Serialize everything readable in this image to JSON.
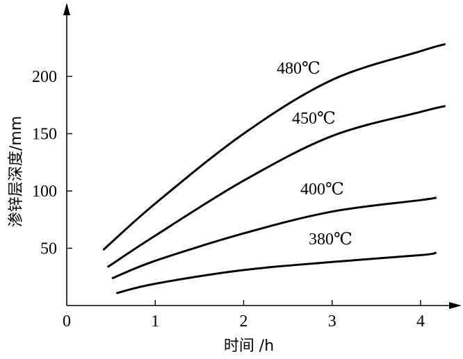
{
  "chart_data": {
    "type": "line",
    "xlabel": "时间 /h",
    "ylabel": "渗锌层深度/mm",
    "xlim": [
      0,
      4.5
    ],
    "ylim": [
      0,
      250
    ],
    "x_ticks": [
      "0",
      "1",
      "2",
      "3",
      "4"
    ],
    "y_ticks": [
      "50",
      "100",
      "150",
      "200"
    ],
    "grid": false,
    "series": [
      {
        "name": "480℃",
        "x": [
          0.42,
          1.0,
          2.0,
          3.0,
          4.0,
          4.27
        ],
        "y": [
          49,
          89,
          150,
          197,
          222,
          228
        ]
      },
      {
        "name": "450℃",
        "x": [
          0.47,
          1.0,
          2.0,
          3.0,
          4.0,
          4.27
        ],
        "y": [
          34,
          61,
          109,
          148,
          169,
          174
        ]
      },
      {
        "name": "400℃",
        "x": [
          0.52,
          1.0,
          2.0,
          3.0,
          4.0,
          4.17
        ],
        "y": [
          24,
          39,
          63,
          82,
          92,
          94
        ]
      },
      {
        "name": "380℃",
        "x": [
          0.57,
          1.0,
          2.0,
          3.0,
          4.0,
          4.17
        ],
        "y": [
          11,
          19,
          31,
          38,
          44,
          46
        ]
      }
    ]
  }
}
